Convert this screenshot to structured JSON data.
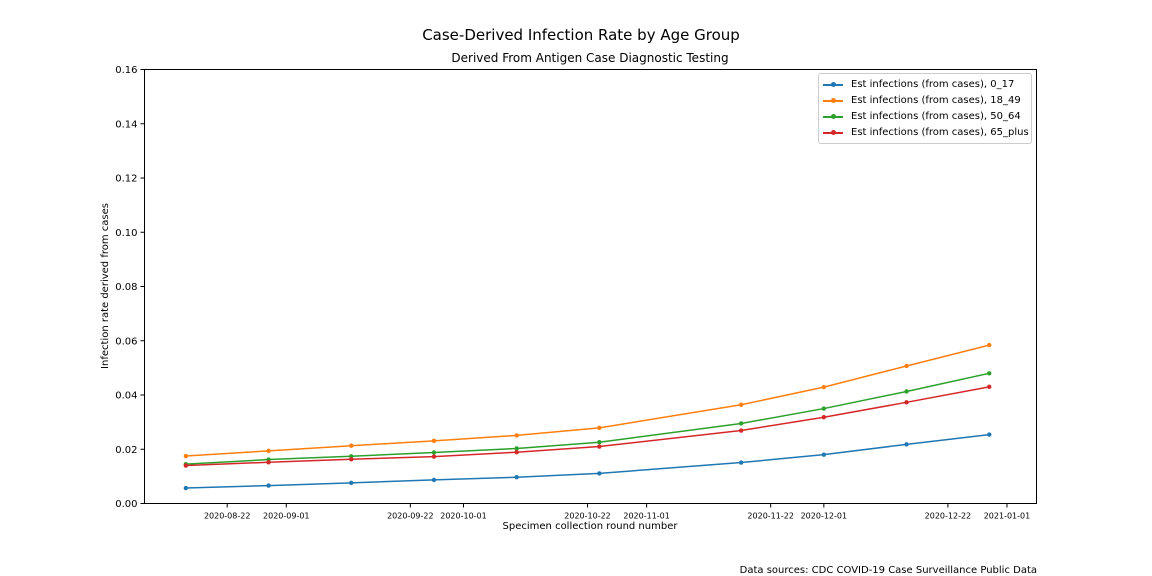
{
  "chart_data": {
    "type": "line",
    "title": "Case-Derived Infection Rate by Age Group",
    "subtitle": "Derived From Antigen Case Diagnostic Testing",
    "xlabel": "Specimen collection round number",
    "ylabel": "Infection rate derived from cases",
    "ylim": [
      0,
      0.16
    ],
    "yticks": [
      "0.00",
      "0.02",
      "0.04",
      "0.06",
      "0.08",
      "0.10",
      "0.12",
      "0.14",
      "0.16"
    ],
    "xlim": [
      "2020-08-08",
      "2021-01-06"
    ],
    "xticks": [
      "2020-08-22",
      "2020-09-01",
      "2020-09-22",
      "2020-10-01",
      "2020-10-22",
      "2020-11-01",
      "2020-11-22",
      "2020-12-01",
      "2020-12-22",
      "2021-01-01"
    ],
    "x": [
      "2020-08-15",
      "2020-08-29",
      "2020-09-12",
      "2020-09-26",
      "2020-10-10",
      "2020-10-24",
      "2020-11-17",
      "2020-12-01",
      "2020-12-15",
      "2020-12-29"
    ],
    "grid": false,
    "legend_position": "top-right",
    "series": [
      {
        "name": "Est infections (from cases), 0_17",
        "color": "#1f77b4",
        "values": [
          0.0057,
          0.0066,
          0.0076,
          0.0087,
          0.0097,
          0.0111,
          0.0151,
          0.018,
          0.0218,
          0.0254
        ]
      },
      {
        "name": "Est infections (from cases), 18_49",
        "color": "#ff7f0e",
        "values": [
          0.0175,
          0.0194,
          0.0213,
          0.0231,
          0.0251,
          0.0279,
          0.0364,
          0.0429,
          0.0507,
          0.0584
        ]
      },
      {
        "name": "Est infections (from cases), 50_64",
        "color": "#2ca02c",
        "values": [
          0.0145,
          0.0162,
          0.0174,
          0.0188,
          0.0203,
          0.0226,
          0.0295,
          0.035,
          0.0413,
          0.048
        ]
      },
      {
        "name": "Est infections (from cases), 65_plus",
        "color": "#d62728",
        "values": [
          0.014,
          0.0152,
          0.0163,
          0.0173,
          0.0189,
          0.021,
          0.0269,
          0.0318,
          0.0373,
          0.043
        ]
      }
    ]
  },
  "footer": {
    "source": "Data sources: CDC COVID-19 Case Surveillance Public Data"
  }
}
